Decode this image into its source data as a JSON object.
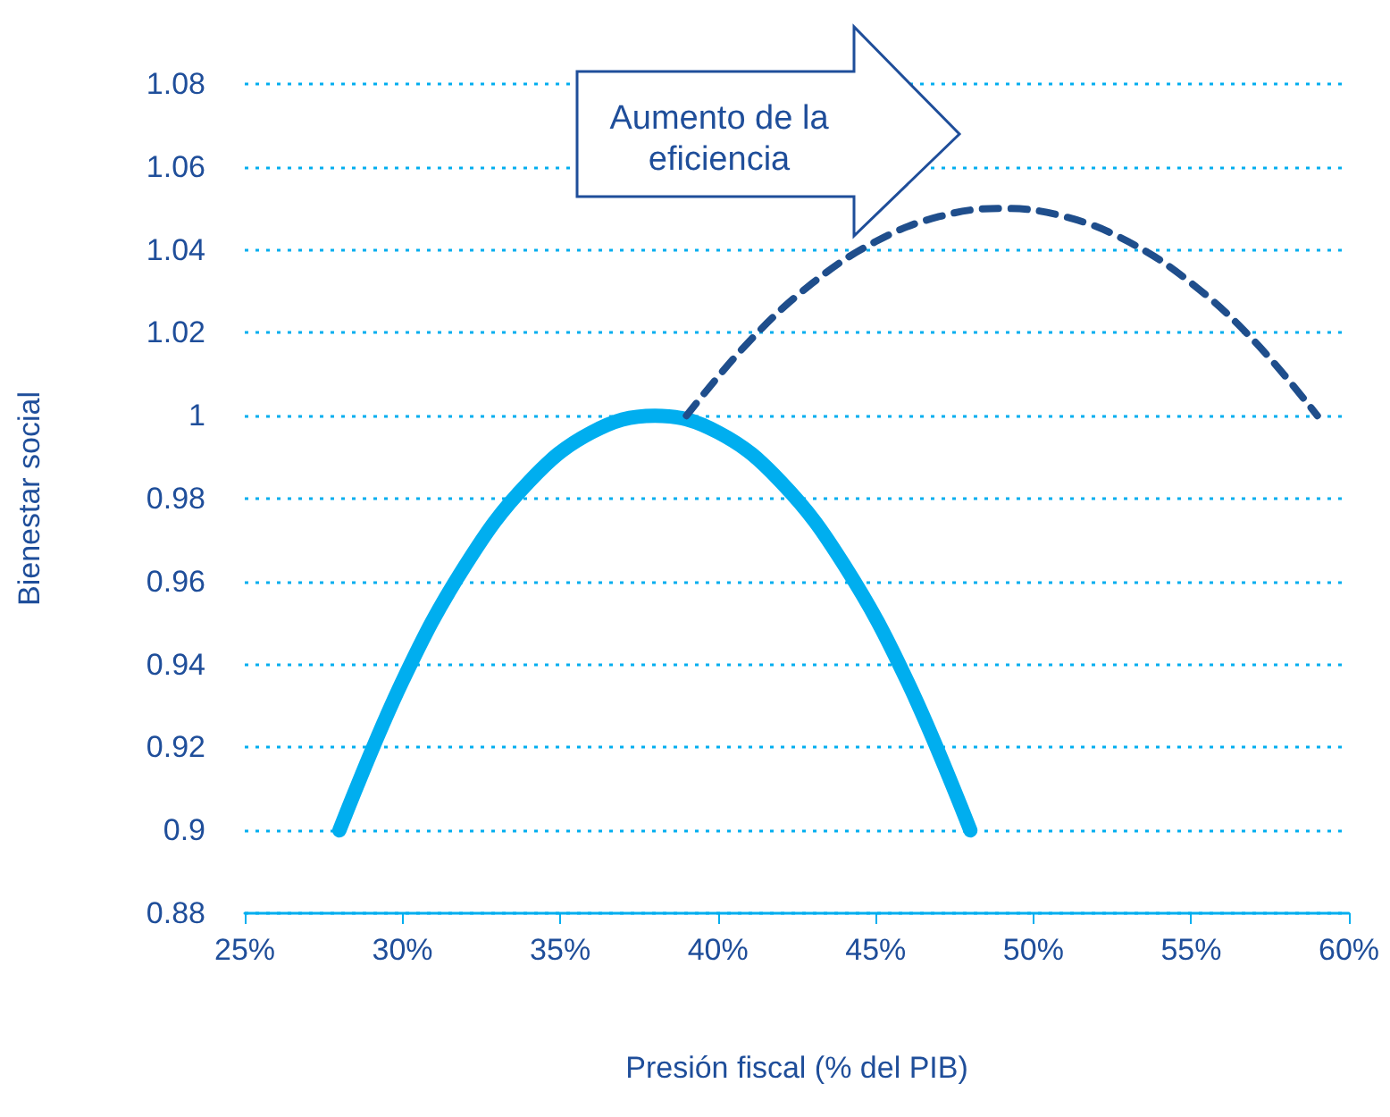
{
  "chart_data": {
    "type": "line",
    "xlabel": "Presión fiscal (% del PIB)",
    "ylabel": "Bienestar social",
    "annotations": [
      "Aumento de la eficiencia"
    ],
    "series": [
      {
        "color": "#00aeef",
        "line_style": "solid",
        "x": [
          28,
          30,
          32,
          34,
          36,
          38,
          40,
          42,
          44,
          46,
          48
        ],
        "values": [
          0.9,
          0.936,
          0.964,
          0.984,
          0.996,
          1.0,
          0.996,
          0.984,
          0.964,
          0.936,
          0.9
        ]
      },
      {
        "color": "#1f4e8c",
        "line_style": "dashed",
        "x": [
          39,
          41,
          43,
          45,
          47,
          49,
          51,
          53,
          55,
          57,
          59
        ],
        "values": [
          1.0,
          1.018,
          1.032,
          1.042,
          1.048,
          1.05,
          1.048,
          1.042,
          1.032,
          1.018,
          1.0
        ]
      }
    ],
    "xlim": [
      25,
      60
    ],
    "xticks": [
      {
        "value": 25,
        "label": "25%"
      },
      {
        "value": 30,
        "label": "30%"
      },
      {
        "value": 35,
        "label": "35%"
      },
      {
        "value": 40,
        "label": "40%"
      },
      {
        "value": 45,
        "label": "45%"
      },
      {
        "value": 50,
        "label": "50%"
      },
      {
        "value": 55,
        "label": "55%"
      },
      {
        "value": 60,
        "label": "60%"
      }
    ],
    "ylim": [
      0.88,
      1.08
    ],
    "yticks": [
      0.88,
      0.9,
      0.92,
      0.94,
      0.96,
      0.98,
      1,
      1.02,
      1.04,
      1.06,
      1.08
    ],
    "grid": "y",
    "marker": "none"
  }
}
